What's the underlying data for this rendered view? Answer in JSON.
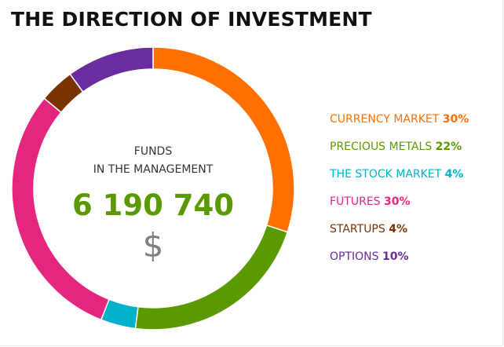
{
  "title": "THE DIRECTION OF INVESTMENT",
  "center": {
    "label_line1": "FUNDS",
    "label_line2": "IN THE MANAGEMENT",
    "value": "6 190 740",
    "unit": "$"
  },
  "chart_data": {
    "type": "pie",
    "title": "THE DIRECTION OF INVESTMENT",
    "legend_position": "right",
    "slices": [
      {
        "name": "CURRENCY MARKET",
        "value": 30,
        "label": "30%",
        "color": "#ff7000"
      },
      {
        "name": "PRECIOUS METALS",
        "value": 22,
        "label": "22%",
        "color": "#5a9a00"
      },
      {
        "name": "THE STOCK MARKET",
        "value": 4,
        "label": "4%",
        "color": "#00b1cc"
      },
      {
        "name": "FUTURES",
        "value": 30,
        "label": "30%",
        "color": "#e5267e"
      },
      {
        "name": "STARTUPS",
        "value": 4,
        "label": "4%",
        "color": "#7a3300"
      },
      {
        "name": "OPTIONS",
        "value": 10,
        "label": "10%",
        "color": "#6a2c9e"
      }
    ]
  }
}
